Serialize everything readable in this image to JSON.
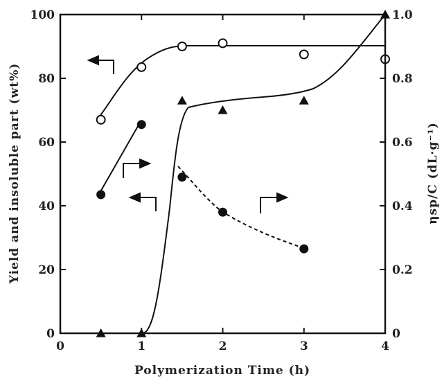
{
  "chart_data": {
    "type": "scatter",
    "title": "",
    "xlabel": "Polymerization Time (h)",
    "ylabel_left": "Yield and insoluble part (wt%)",
    "ylabel_right": "ηsp/C (dL·g⁻¹)",
    "xlim": [
      0,
      4
    ],
    "ylim_left": [
      0,
      100
    ],
    "ylim_right": [
      0,
      1.0
    ],
    "x_ticks": [
      "0",
      "1",
      "2",
      "3",
      "4"
    ],
    "y_left_ticks": [
      "0",
      "20",
      "40",
      "60",
      "80",
      "100"
    ],
    "y_right_ticks": [
      "0",
      "0.2",
      "0.4",
      "0.6",
      "0.8",
      "1.0"
    ],
    "grid": false,
    "series": [
      {
        "marker": "open-circle",
        "axis": "left",
        "x": [
          0.5,
          1.0,
          1.5,
          2.0,
          3.0,
          4.0
        ],
        "y": [
          67,
          83.5,
          90,
          91,
          87.5,
          86
        ],
        "fit_line": "solid"
      },
      {
        "marker": "filled-circle",
        "axis": "right",
        "x": [
          0.5,
          1.0,
          1.5,
          2.0,
          3.0
        ],
        "y": [
          0.435,
          0.655,
          0.49,
          0.38,
          0.265
        ],
        "fit_line": "solid then dashed"
      },
      {
        "marker": "filled-triangle",
        "axis": "left",
        "x": [
          0.5,
          1.0,
          1.5,
          2.0,
          3.0,
          4.0
        ],
        "y": [
          0,
          0,
          73,
          70,
          73,
          100
        ],
        "fit_line": "solid"
      }
    ],
    "annotations": [
      {
        "type": "arrow-left",
        "note": "open circles read on left axis"
      },
      {
        "type": "arrow-right",
        "note": "filled circles read on right axis"
      },
      {
        "type": "arrow-left",
        "note": "triangles read on left axis"
      },
      {
        "type": "arrow-right",
        "note": "dashed filled-circle curve read on right axis"
      }
    ]
  }
}
